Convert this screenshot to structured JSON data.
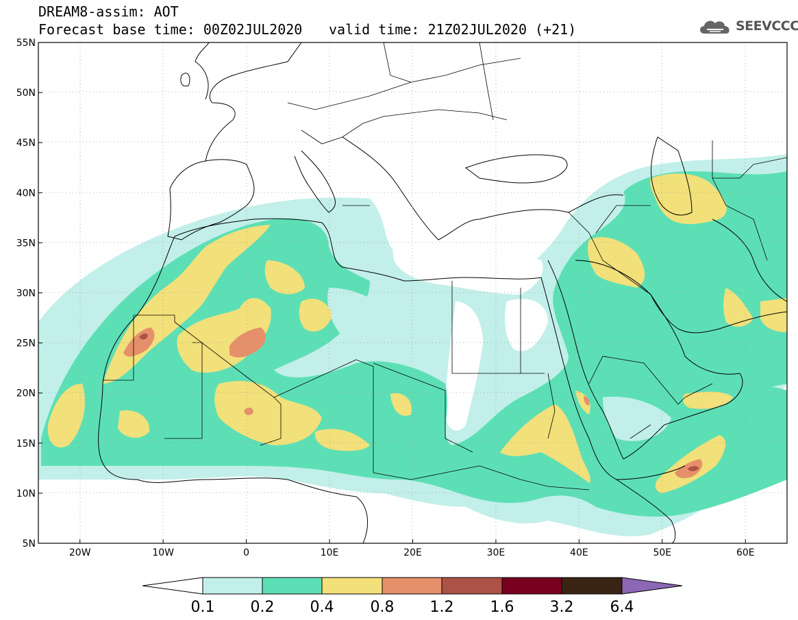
{
  "header": {
    "title": "DREAM8-assim: AOT",
    "base_time": "Forecast base time: 00Z02JUL2020",
    "valid_time": "valid time: 21Z02JUL2020 (+21)",
    "logo_text": "SEEVCCC",
    "logo_icon": "cloud-icon"
  },
  "map": {
    "lon_range": [
      -25,
      65
    ],
    "lat_range": [
      5,
      55
    ],
    "y_ticks": [
      "5N",
      "10N",
      "15N",
      "20N",
      "25N",
      "30N",
      "35N",
      "40N",
      "45N",
      "50N",
      "55N"
    ],
    "x_ticks": [
      "20W",
      "10W",
      "0",
      "10E",
      "20E",
      "30E",
      "40E",
      "50E",
      "60E"
    ],
    "grid": "dotted"
  },
  "colorbar": {
    "labels": [
      "0.1",
      "0.2",
      "0.4",
      "0.8",
      "1.2",
      "1.6",
      "3.2",
      "6.4"
    ],
    "colors": [
      "#ffffff",
      "#c2efe9",
      "#5ddfb6",
      "#f2e07a",
      "#e5906a",
      "#ad5246",
      "#7a0020",
      "#3a2414",
      "#8b67b5"
    ]
  },
  "colors": {
    "land_none": "#ffffff",
    "c01": "#c2efe9",
    "c02": "#5ddfb6",
    "c04": "#f2e07a",
    "c08": "#e5906a",
    "c12": "#ad5246",
    "border": "#000000"
  }
}
